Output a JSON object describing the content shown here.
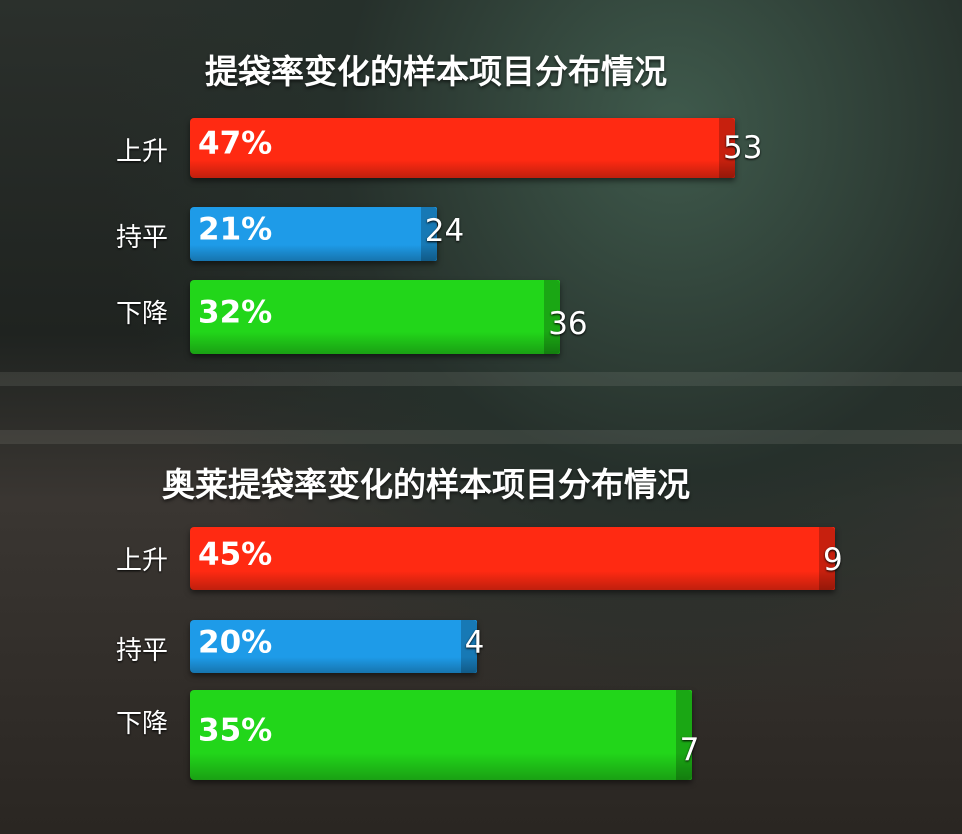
{
  "chart_data": [
    {
      "type": "bar",
      "orientation": "horizontal",
      "title": "提袋率变化的样本项目分布情况",
      "categories": [
        "上升",
        "持平",
        "下降"
      ],
      "values": [
        53,
        24,
        36
      ],
      "percent_labels": [
        "47%",
        "21%",
        "32%"
      ],
      "colors": [
        "#ff2a12",
        "#1e9be8",
        "#22d61a"
      ]
    },
    {
      "type": "bar",
      "orientation": "horizontal",
      "title": "奥莱提袋率变化的样本项目分布情况",
      "categories": [
        "上升",
        "持平",
        "下降"
      ],
      "values": [
        9,
        4,
        7
      ],
      "percent_labels": [
        "45%",
        "20%",
        "35%"
      ],
      "colors": [
        "#ff2a12",
        "#1e9be8",
        "#22d61a"
      ]
    }
  ]
}
